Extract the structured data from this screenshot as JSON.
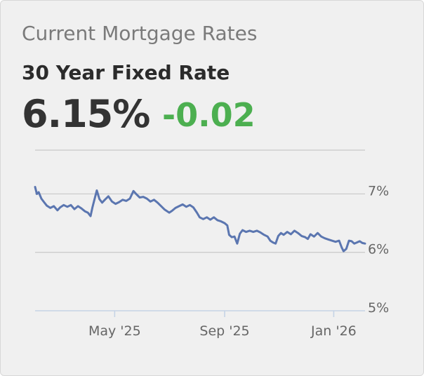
{
  "header": {
    "title": "Current Mortgage Rates",
    "rate_name": "30 Year Fixed Rate",
    "rate_value": "6.15%",
    "rate_change": "-0.02"
  },
  "colors": {
    "line": "#5b76b0",
    "positive_change": "#4caf50",
    "grid": "#c8c8c8",
    "axis": "#c5d3e6"
  },
  "chart_data": {
    "type": "line",
    "title": "",
    "xlabel": "",
    "ylabel": "",
    "x_ticks": [
      {
        "label": "May '25",
        "date": "2025-05-01"
      },
      {
        "label": "Sep '25",
        "date": "2025-09-01"
      },
      {
        "label": "Jan '26",
        "date": "2026-01-01"
      }
    ],
    "y_ticks": [
      {
        "label": "7%",
        "value": 7
      },
      {
        "label": "6%",
        "value": 6
      },
      {
        "label": "5%",
        "value": 5
      }
    ],
    "xlim": [
      "2025-02-01",
      "2026-02-05"
    ],
    "ylim": [
      5,
      7.75
    ],
    "grid": true,
    "series": [
      {
        "values": [
          [
            "2025-02-01",
            7.12
          ],
          [
            "2025-02-03",
            7.0
          ],
          [
            "2025-02-05",
            7.03
          ],
          [
            "2025-02-08",
            6.92
          ],
          [
            "2025-02-11",
            6.86
          ],
          [
            "2025-02-14",
            6.8
          ],
          [
            "2025-02-18",
            6.76
          ],
          [
            "2025-02-22",
            6.79
          ],
          [
            "2025-02-26",
            6.72
          ],
          [
            "2025-03-01",
            6.77
          ],
          [
            "2025-03-05",
            6.81
          ],
          [
            "2025-03-09",
            6.78
          ],
          [
            "2025-03-13",
            6.81
          ],
          [
            "2025-03-17",
            6.74
          ],
          [
            "2025-03-21",
            6.79
          ],
          [
            "2025-03-25",
            6.75
          ],
          [
            "2025-03-29",
            6.7
          ],
          [
            "2025-04-01",
            6.68
          ],
          [
            "2025-04-04",
            6.62
          ],
          [
            "2025-04-06",
            6.76
          ],
          [
            "2025-04-09",
            6.94
          ],
          [
            "2025-04-11",
            7.06
          ],
          [
            "2025-04-14",
            6.91
          ],
          [
            "2025-04-17",
            6.85
          ],
          [
            "2025-04-20",
            6.9
          ],
          [
            "2025-04-24",
            6.96
          ],
          [
            "2025-04-28",
            6.87
          ],
          [
            "2025-05-02",
            6.83
          ],
          [
            "2025-05-06",
            6.86
          ],
          [
            "2025-05-10",
            6.9
          ],
          [
            "2025-05-14",
            6.88
          ],
          [
            "2025-05-18",
            6.92
          ],
          [
            "2025-05-22",
            7.05
          ],
          [
            "2025-05-25",
            7.0
          ],
          [
            "2025-05-29",
            6.94
          ],
          [
            "2025-06-02",
            6.95
          ],
          [
            "2025-06-06",
            6.92
          ],
          [
            "2025-06-10",
            6.87
          ],
          [
            "2025-06-14",
            6.9
          ],
          [
            "2025-06-18",
            6.85
          ],
          [
            "2025-06-22",
            6.79
          ],
          [
            "2025-06-26",
            6.73
          ],
          [
            "2025-07-01",
            6.68
          ],
          [
            "2025-07-04",
            6.71
          ],
          [
            "2025-07-08",
            6.76
          ],
          [
            "2025-07-12",
            6.79
          ],
          [
            "2025-07-16",
            6.82
          ],
          [
            "2025-07-20",
            6.78
          ],
          [
            "2025-07-24",
            6.81
          ],
          [
            "2025-07-28",
            6.77
          ],
          [
            "2025-08-01",
            6.68
          ],
          [
            "2025-08-04",
            6.6
          ],
          [
            "2025-08-08",
            6.57
          ],
          [
            "2025-08-12",
            6.6
          ],
          [
            "2025-08-16",
            6.56
          ],
          [
            "2025-08-20",
            6.6
          ],
          [
            "2025-08-24",
            6.55
          ],
          [
            "2025-08-28",
            6.53
          ],
          [
            "2025-09-01",
            6.5
          ],
          [
            "2025-09-04",
            6.46
          ],
          [
            "2025-09-06",
            6.3
          ],
          [
            "2025-09-09",
            6.26
          ],
          [
            "2025-09-12",
            6.27
          ],
          [
            "2025-09-15",
            6.15
          ],
          [
            "2025-09-18",
            6.32
          ],
          [
            "2025-09-21",
            6.38
          ],
          [
            "2025-09-25",
            6.35
          ],
          [
            "2025-09-29",
            6.37
          ],
          [
            "2025-10-03",
            6.35
          ],
          [
            "2025-10-07",
            6.37
          ],
          [
            "2025-10-11",
            6.34
          ],
          [
            "2025-10-15",
            6.3
          ],
          [
            "2025-10-19",
            6.27
          ],
          [
            "2025-10-22",
            6.2
          ],
          [
            "2025-10-25",
            6.17
          ],
          [
            "2025-10-28",
            6.15
          ],
          [
            "2025-10-31",
            6.28
          ],
          [
            "2025-11-03",
            6.33
          ],
          [
            "2025-11-06",
            6.3
          ],
          [
            "2025-11-10",
            6.35
          ],
          [
            "2025-11-14",
            6.31
          ],
          [
            "2025-11-18",
            6.37
          ],
          [
            "2025-11-22",
            6.33
          ],
          [
            "2025-11-26",
            6.28
          ],
          [
            "2025-11-30",
            6.26
          ],
          [
            "2025-12-03",
            6.23
          ],
          [
            "2025-12-06",
            6.31
          ],
          [
            "2025-12-10",
            6.27
          ],
          [
            "2025-12-14",
            6.33
          ],
          [
            "2025-12-18",
            6.27
          ],
          [
            "2025-12-22",
            6.24
          ],
          [
            "2025-12-26",
            6.22
          ],
          [
            "2025-12-30",
            6.2
          ],
          [
            "2026-01-03",
            6.18
          ],
          [
            "2026-01-07",
            6.2
          ],
          [
            "2026-01-10",
            6.08
          ],
          [
            "2026-01-12",
            6.02
          ],
          [
            "2026-01-15",
            6.06
          ],
          [
            "2026-01-18",
            6.2
          ],
          [
            "2026-01-21",
            6.19
          ],
          [
            "2026-01-24",
            6.15
          ],
          [
            "2026-01-27",
            6.17
          ],
          [
            "2026-01-30",
            6.19
          ],
          [
            "2026-02-02",
            6.16
          ],
          [
            "2026-02-05",
            6.15
          ]
        ]
      }
    ]
  }
}
